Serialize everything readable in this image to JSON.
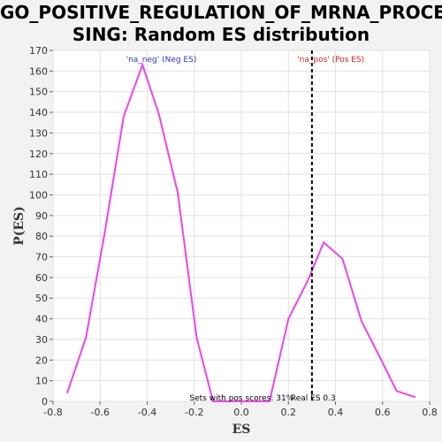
{
  "chart_data": {
    "type": "line",
    "title_line1": "GO_POSITIVE_REGULATION_OF_MRNA_PROCES",
    "title_line2": "SING: Random ES distribution",
    "xlabel": "ES",
    "ylabel": "P(ES)",
    "xlim": [
      -0.8,
      0.8
    ],
    "ylim": [
      0,
      170
    ],
    "x_ticks": [
      "-0.8",
      "-0.6",
      "-0.4",
      "-0.2",
      "0.0",
      "0.2",
      "0.4",
      "0.6",
      "0.8"
    ],
    "y_ticks": [
      "0",
      "10",
      "20",
      "30",
      "40",
      "50",
      "60",
      "70",
      "80",
      "90",
      "100",
      "110",
      "120",
      "130",
      "140",
      "150",
      "160",
      "170"
    ],
    "grid": true,
    "series": [
      {
        "color": "#ee44ee",
        "x": [
          -0.74,
          -0.66,
          -0.58,
          -0.5,
          -0.42,
          -0.35,
          -0.27,
          -0.19,
          -0.12,
          -0.04,
          0.04,
          0.12,
          0.2,
          0.28,
          0.35,
          0.43,
          0.51,
          0.59,
          0.66,
          0.74
        ],
        "y": [
          4,
          31,
          82,
          138,
          163,
          139,
          101,
          31,
          0,
          0,
          0,
          0,
          40,
          58,
          77,
          69,
          39,
          21,
          5,
          2
        ]
      }
    ],
    "annotations": {
      "neg_label": "'na_neg' (Neg ES)",
      "pos_label": "'na_pos' (Pos ES)",
      "pos_scores_label": "Sets with pos scores: 31%",
      "real_es_label": "Real ES 0.3"
    },
    "real_es": 0.3,
    "neg_color": "#3333cc",
    "pos_color": "#dd2222"
  }
}
